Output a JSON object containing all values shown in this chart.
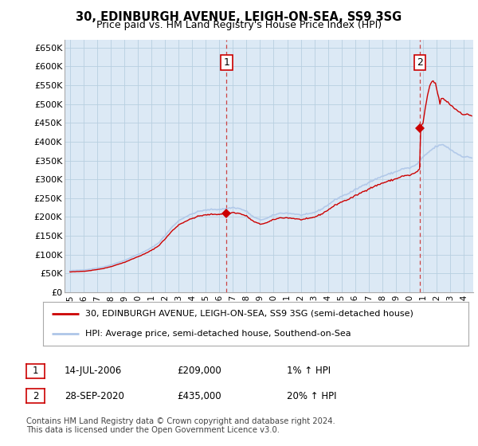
{
  "title_line1": "30, EDINBURGH AVENUE, LEIGH-ON-SEA, SS9 3SG",
  "title_line2": "Price paid vs. HM Land Registry's House Price Index (HPI)",
  "ylabel_ticks": [
    "£0",
    "£50K",
    "£100K",
    "£150K",
    "£200K",
    "£250K",
    "£300K",
    "£350K",
    "£400K",
    "£450K",
    "£500K",
    "£550K",
    "£600K",
    "£650K"
  ],
  "ytick_values": [
    0,
    50000,
    100000,
    150000,
    200000,
    250000,
    300000,
    350000,
    400000,
    450000,
    500000,
    550000,
    600000,
    650000
  ],
  "ylim": [
    0,
    670000
  ],
  "hpi_color": "#aec6e8",
  "price_color": "#cc0000",
  "sale1_value": 209000,
  "sale2_value": 435000,
  "marker1_x": 2006.54,
  "marker2_x": 2020.75,
  "legend_label1": "30, EDINBURGH AVENUE, LEIGH-ON-SEA, SS9 3SG (semi-detached house)",
  "legend_label2": "HPI: Average price, semi-detached house, Southend-on-Sea",
  "table_row1": [
    "1",
    "14-JUL-2006",
    "£209,000",
    "1% ↑ HPI"
  ],
  "table_row2": [
    "2",
    "28-SEP-2020",
    "£435,000",
    "20% ↑ HPI"
  ],
  "footnote": "Contains HM Land Registry data © Crown copyright and database right 2024.\nThis data is licensed under the Open Government Licence v3.0.",
  "background_color": "#ffffff",
  "chart_bg": "#dce9f5",
  "grid_color": "#b8cfe0"
}
